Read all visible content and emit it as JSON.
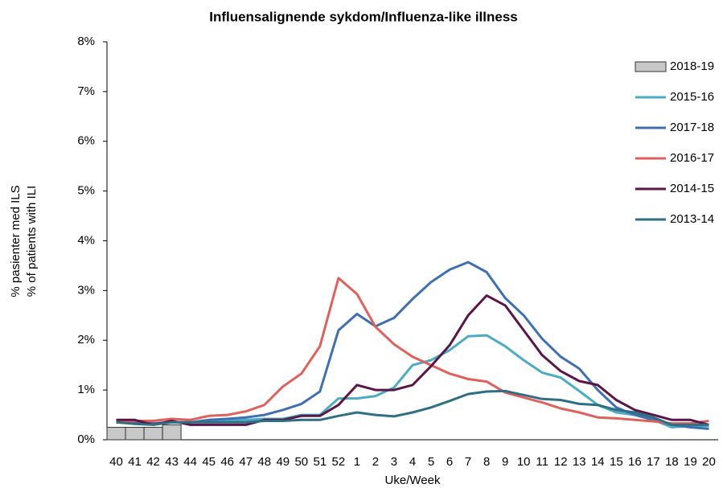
{
  "chart_data": {
    "type": "line",
    "title": "Influensalignende sykdom/Influenza-like illness",
    "x_label": "Uke/Week",
    "y_label": [
      "% pasienter med ILS",
      "% of patients with ILI"
    ],
    "categories": [
      "40",
      "41",
      "42",
      "43",
      "44",
      "45",
      "46",
      "47",
      "48",
      "49",
      "50",
      "51",
      "52",
      "1",
      "2",
      "3",
      "4",
      "5",
      "6",
      "7",
      "8",
      "9",
      "10",
      "11",
      "12",
      "13",
      "14",
      "15",
      "16",
      "17",
      "18",
      "19",
      "20"
    ],
    "ylim": [
      0,
      8
    ],
    "yticks": [
      {
        "value": 0,
        "label": "0%"
      },
      {
        "value": 1,
        "label": "1%"
      },
      {
        "value": 2,
        "label": "2%"
      },
      {
        "value": 3,
        "label": "3%"
      },
      {
        "value": 4,
        "label": "4%"
      },
      {
        "value": 5,
        "label": "5%"
      },
      {
        "value": 6,
        "label": "6%"
      },
      {
        "value": 7,
        "label": "7%"
      },
      {
        "value": 8,
        "label": "8%"
      }
    ],
    "grid": false,
    "series": [
      {
        "name": "2018-19",
        "type": "bar",
        "color": "#c8c8c8",
        "values": [
          0.25,
          0.25,
          0.25,
          0.3,
          null,
          null,
          null,
          null,
          null,
          null,
          null,
          null,
          null,
          null,
          null,
          null,
          null,
          null,
          null,
          null,
          null,
          null,
          null,
          null,
          null,
          null,
          null,
          null,
          null,
          null,
          null,
          null,
          null
        ]
      },
      {
        "name": "2015-16",
        "type": "line",
        "color": "#4bacc6",
        "values": [
          0.35,
          0.33,
          0.32,
          0.35,
          0.35,
          0.37,
          0.38,
          0.4,
          0.42,
          0.42,
          0.5,
          0.5,
          0.83,
          0.83,
          0.88,
          1.05,
          1.5,
          1.6,
          1.8,
          2.08,
          2.1,
          1.88,
          1.6,
          1.35,
          1.25,
          0.98,
          0.7,
          0.55,
          0.5,
          0.4,
          0.25,
          0.28,
          0.28
        ]
      },
      {
        "name": "2017-18",
        "type": "line",
        "color": "#3e6fb0",
        "values": [
          0.35,
          0.35,
          0.33,
          0.35,
          0.35,
          0.4,
          0.42,
          0.45,
          0.5,
          0.6,
          0.72,
          0.97,
          2.2,
          2.53,
          2.28,
          2.45,
          2.83,
          3.17,
          3.42,
          3.57,
          3.37,
          2.85,
          2.5,
          2.03,
          1.67,
          1.43,
          1.0,
          0.65,
          0.5,
          0.4,
          0.3,
          0.25,
          0.22
        ]
      },
      {
        "name": "2016-17",
        "type": "line",
        "color": "#e0605b",
        "values": [
          0.35,
          0.38,
          0.38,
          0.42,
          0.4,
          0.48,
          0.5,
          0.57,
          0.7,
          1.07,
          1.33,
          1.88,
          3.25,
          2.93,
          2.27,
          1.92,
          1.67,
          1.5,
          1.33,
          1.22,
          1.17,
          0.95,
          0.85,
          0.75,
          0.63,
          0.55,
          0.45,
          0.43,
          0.4,
          0.37,
          0.33,
          0.33,
          0.38
        ]
      },
      {
        "name": "2014-15",
        "type": "line",
        "color": "#5b1648",
        "values": [
          0.4,
          0.4,
          0.3,
          0.38,
          0.3,
          0.3,
          0.3,
          0.3,
          0.4,
          0.4,
          0.48,
          0.48,
          0.7,
          1.1,
          1.0,
          1.0,
          1.1,
          1.48,
          1.9,
          2.5,
          2.9,
          2.7,
          2.2,
          1.7,
          1.38,
          1.18,
          1.1,
          0.8,
          0.6,
          0.5,
          0.4,
          0.4,
          0.3
        ]
      },
      {
        "name": "2013-14",
        "type": "line",
        "color": "#2f6f84",
        "values": [
          0.35,
          0.32,
          0.3,
          0.35,
          0.35,
          0.35,
          0.35,
          0.35,
          0.38,
          0.38,
          0.4,
          0.4,
          0.48,
          0.55,
          0.5,
          0.47,
          0.55,
          0.65,
          0.78,
          0.92,
          0.97,
          0.98,
          0.9,
          0.82,
          0.8,
          0.72,
          0.7,
          0.6,
          0.55,
          0.45,
          0.3,
          0.3,
          0.3
        ]
      }
    ]
  }
}
